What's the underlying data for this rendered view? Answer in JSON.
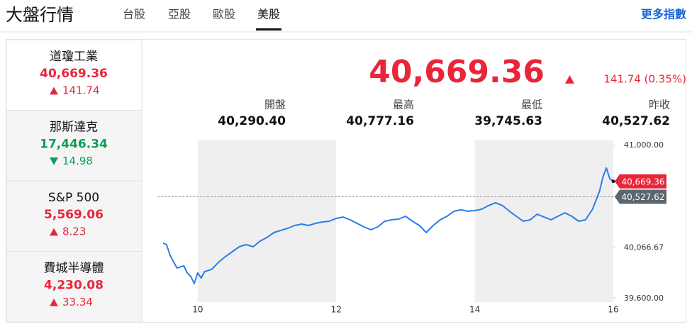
{
  "header": {
    "title": "大盤行情",
    "tabs": [
      "台股",
      "亞股",
      "歐股",
      "美股"
    ],
    "active_tab": 3,
    "more": "更多指數"
  },
  "indices": [
    {
      "name": "道瓊工業",
      "value": "40,669.36",
      "change": "141.74",
      "direction": "up"
    },
    {
      "name": "那斯達克",
      "value": "17,446.34",
      "change": "14.98",
      "direction": "down"
    },
    {
      "name": "S&P 500",
      "value": "5,569.06",
      "change": "8.23",
      "direction": "up"
    },
    {
      "name": "費城半導體",
      "value": "4,230.08",
      "change": "33.34",
      "direction": "up"
    }
  ],
  "selected_index": 0,
  "detail": {
    "price": "40,669.36",
    "change": "141.74 (0.35%)",
    "direction": "up",
    "stats": [
      {
        "label": "開盤",
        "value": "40,290.40"
      },
      {
        "label": "最高",
        "value": "40,777.16"
      },
      {
        "label": "最低",
        "value": "39,745.63"
      },
      {
        "label": "昨收",
        "value": "40,527.62"
      }
    ]
  },
  "chart": {
    "type": "line",
    "color": "#2b7de9",
    "x": [
      9.5,
      9.55,
      9.6,
      9.7,
      9.8,
      9.85,
      9.9,
      9.95,
      10.0,
      10.05,
      10.1,
      10.2,
      10.3,
      10.4,
      10.5,
      10.6,
      10.7,
      10.8,
      10.9,
      11.0,
      11.1,
      11.2,
      11.3,
      11.4,
      11.5,
      11.6,
      11.7,
      11.8,
      11.9,
      12.0,
      12.1,
      12.2,
      12.3,
      12.4,
      12.5,
      12.6,
      12.7,
      12.8,
      12.9,
      13.0,
      13.1,
      13.2,
      13.3,
      13.4,
      13.5,
      13.6,
      13.7,
      13.8,
      13.9,
      14.0,
      14.1,
      14.2,
      14.3,
      14.4,
      14.5,
      14.6,
      14.7,
      14.8,
      14.9,
      15.0,
      15.1,
      15.2,
      15.3,
      15.4,
      15.5,
      15.6,
      15.7,
      15.8,
      15.85,
      15.9,
      15.95,
      16.0
    ],
    "values": [
      40102,
      40089,
      39991,
      39874,
      39893,
      39828,
      39796,
      39730,
      39828,
      39782,
      39841,
      39861,
      39926,
      39978,
      40023,
      40069,
      40089,
      40069,
      40121,
      40154,
      40199,
      40219,
      40238,
      40264,
      40277,
      40264,
      40284,
      40297,
      40303,
      40329,
      40342,
      40316,
      40284,
      40251,
      40225,
      40251,
      40303,
      40316,
      40323,
      40349,
      40303,
      40264,
      40199,
      40264,
      40316,
      40349,
      40395,
      40408,
      40395,
      40401,
      40414,
      40447,
      40473,
      40447,
      40395,
      40349,
      40303,
      40316,
      40368,
      40342,
      40316,
      40349,
      40381,
      40349,
      40303,
      40316,
      40414,
      40577,
      40707,
      40792,
      40694,
      40669.36
    ],
    "xlim": [
      9.5,
      16
    ],
    "xticks": [
      10,
      12,
      14,
      16
    ],
    "ylim": [
      39600,
      41000
    ],
    "yticks": [
      {
        "value": 41000,
        "label": "41,000.00"
      },
      {
        "value": 40066.67,
        "label": "40,066.67"
      },
      {
        "value": 39600,
        "label": "39,600.00"
      }
    ],
    "last": {
      "value": 40669.36,
      "label": "40,669.36"
    },
    "reference": {
      "value": 40527.62,
      "label": "40,527.62"
    }
  }
}
